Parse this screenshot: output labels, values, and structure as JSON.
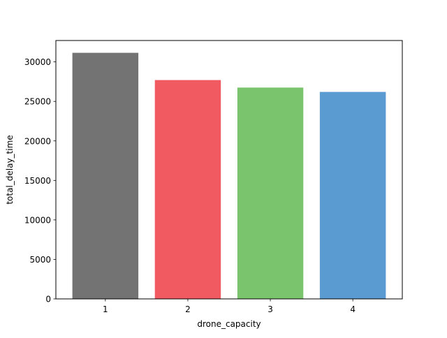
{
  "chart_data": {
    "type": "bar",
    "title": "",
    "xlabel": "drone_capacity",
    "ylabel": "total_delay_time",
    "categories": [
      "1",
      "2",
      "3",
      "4"
    ],
    "values": [
      31150,
      27700,
      26750,
      26200
    ],
    "colors": [
      "#737373",
      "#f25a62",
      "#7bc46e",
      "#5a9bd2"
    ],
    "ylim": [
      0,
      32707.5
    ],
    "yticks": [
      0,
      5000,
      10000,
      15000,
      20000,
      25000,
      30000
    ],
    "ytick_labels": [
      "0",
      "5000",
      "10000",
      "15000",
      "20000",
      "25000",
      "30000"
    ],
    "grid": false
  }
}
